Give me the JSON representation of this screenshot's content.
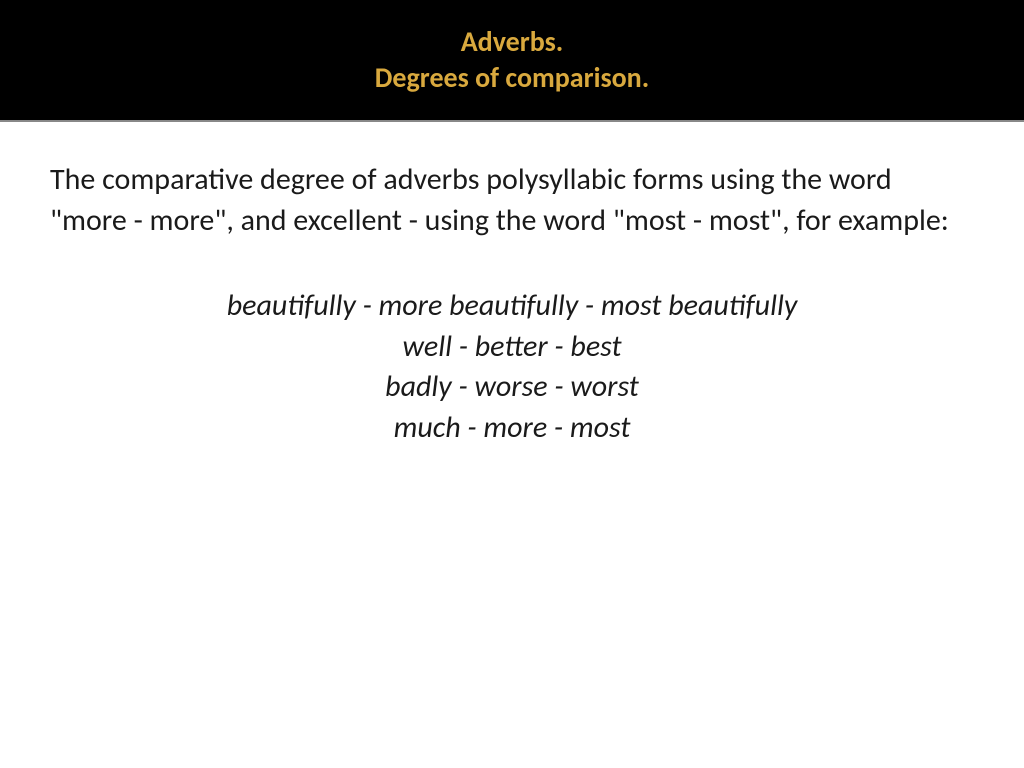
{
  "header": {
    "line1": "Adverbs.",
    "line2": "Degrees of comparison."
  },
  "body": {
    "paragraph": "The comparative degree of adverbs polysyllabic forms using the word \"more - more\", and excellent - using the word \"most - most\", for example:",
    "examples": [
      "beautifully - more beautifully - most beautifully",
      "well - better - best",
      "badly - worse - worst",
      "much - more - most"
    ]
  },
  "styling": {
    "header_bg": "#000000",
    "title_color": "#d9a93e",
    "title_fontsize": 28,
    "body_fontsize": 30,
    "body_color": "#1a1a1a",
    "page_bg": "#ffffff",
    "examples_italic": true,
    "examples_centered": true
  }
}
